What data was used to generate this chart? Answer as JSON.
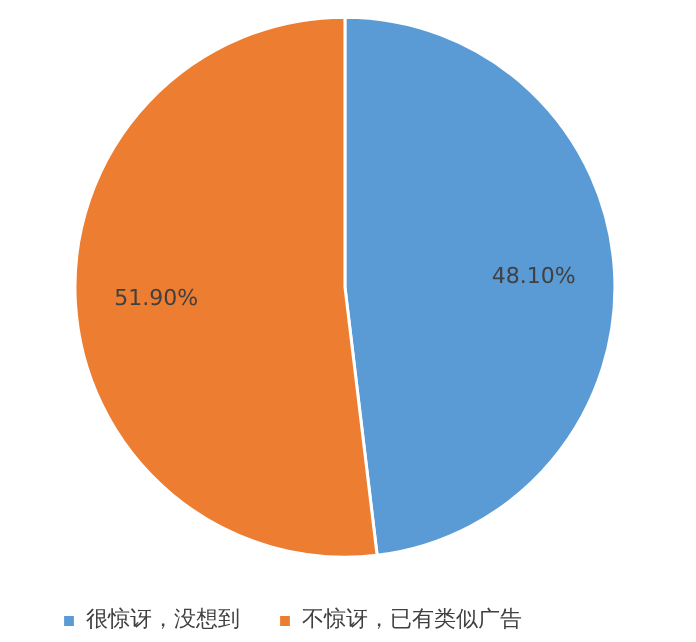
{
  "chart_data": {
    "type": "pie",
    "categories": [
      "很惊讶，没想到",
      "不惊讶，已有类似广告"
    ],
    "values": [
      48.1,
      51.9
    ],
    "colors": [
      "#5b9bd5",
      "#ed7d31"
    ],
    "value_labels": [
      "48.10%",
      "51.90%"
    ],
    "legend": "bottom"
  }
}
